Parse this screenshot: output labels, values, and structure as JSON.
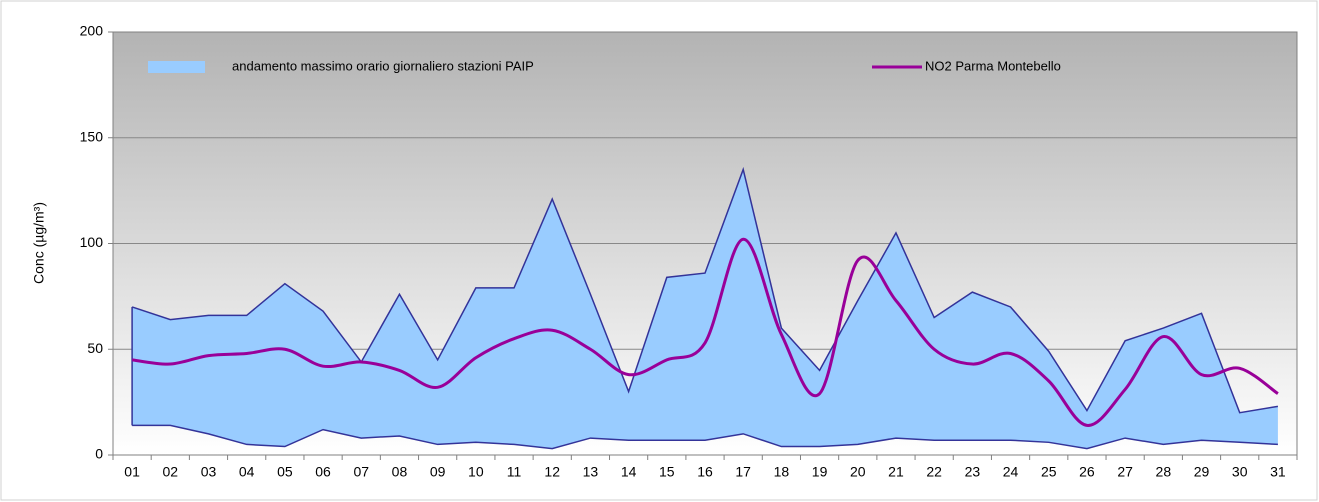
{
  "chart_data": {
    "type": "band_line",
    "y_label": "Conc (µg/m³)",
    "categories": [
      "01",
      "02",
      "03",
      "04",
      "05",
      "06",
      "07",
      "08",
      "09",
      "10",
      "11",
      "12",
      "13",
      "14",
      "15",
      "16",
      "17",
      "18",
      "19",
      "20",
      "21",
      "22",
      "23",
      "24",
      "25",
      "26",
      "27",
      "28",
      "29",
      "30",
      "31"
    ],
    "series": [
      {
        "name": "andamento massimo orario giornaliero stazioni PAIP",
        "type": "band",
        "color": "#99ccff",
        "edge_color": "#333399",
        "values": [
          70,
          64,
          66,
          66,
          81,
          68,
          44,
          76,
          45,
          79,
          79,
          121,
          76,
          30,
          84,
          86,
          135,
          60,
          40,
          73,
          105,
          65,
          77,
          70,
          49,
          21,
          54,
          60,
          67,
          20,
          23
        ],
        "lower": [
          14,
          14,
          10,
          5,
          4,
          12,
          8,
          9,
          5,
          6,
          5,
          3,
          8,
          7,
          7,
          7,
          10,
          4,
          4,
          5,
          8,
          7,
          7,
          7,
          6,
          3,
          8,
          5,
          7,
          6,
          5
        ]
      },
      {
        "name": "NO2 Parma Montebello",
        "type": "line",
        "color": "#990099",
        "values": [
          45,
          43,
          47,
          48,
          50,
          42,
          44,
          40,
          32,
          46,
          55,
          59,
          50,
          38,
          45,
          53,
          102,
          57,
          29,
          92,
          73,
          50,
          43,
          48,
          35,
          14,
          31,
          56,
          38,
          41,
          29
        ]
      }
    ],
    "ylim": [
      0,
      200
    ],
    "yticks": [
      0,
      50,
      100,
      150,
      200
    ],
    "grid": true
  }
}
